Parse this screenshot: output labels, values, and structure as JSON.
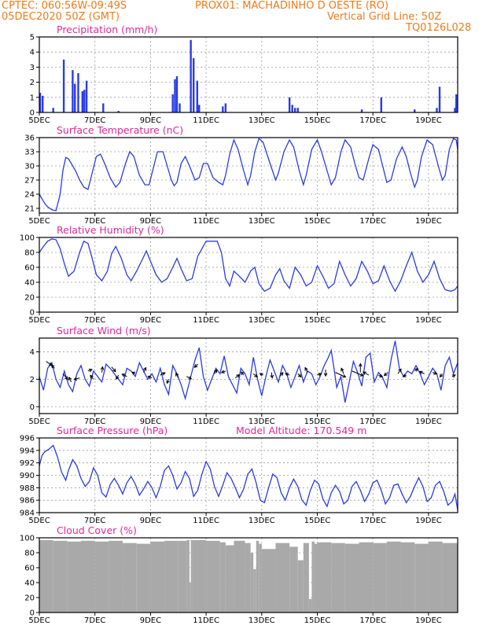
{
  "header": {
    "line1_left": "CPTEC:   060:56W-09:49S",
    "line1_right": "PROX01: MACHADINHO D OESTE (RO)",
    "line2_left": "05DEC2020 50Z (GMT)",
    "line2_right": "Vertical Grid Line: 50Z",
    "line3_right": "TQ0126L028"
  },
  "colors": {
    "header": "#f07a1a",
    "panel_title": "#e0289a",
    "series": "#2a3be8",
    "cloud": "#a9a9a9",
    "vector": "#000000"
  },
  "x_axis": {
    "tick_labels": [
      "5DEC",
      "7DEC",
      "9DEC",
      "11DEC",
      "13DEC",
      "15DEC",
      "17DEC",
      "19DEC"
    ],
    "tick_days": [
      5,
      7,
      9,
      11,
      13,
      15,
      17,
      19
    ],
    "range_days": [
      5,
      20.05
    ]
  },
  "chart_data": [
    {
      "type": "bar",
      "title": "Precipitation (mm/h)",
      "ylim": [
        0,
        5
      ],
      "yticks": [
        0,
        1,
        2,
        3,
        4,
        5
      ],
      "x": [
        5.03,
        5.12,
        5.5,
        5.88,
        6.2,
        6.28,
        6.4,
        6.55,
        6.62,
        6.7,
        7.3,
        7.85,
        9.8,
        9.88,
        9.95,
        10.05,
        10.45,
        10.55,
        10.68,
        10.75,
        11.6,
        11.7,
        14.0,
        14.1,
        14.2,
        14.3,
        16.6,
        17.3,
        18.5,
        19.3,
        19.4,
        19.95,
        20.0
      ],
      "values": [
        1.3,
        1.1,
        0.3,
        3.5,
        2.8,
        1.9,
        2.6,
        1.4,
        1.5,
        2.1,
        0.6,
        0.1,
        1.2,
        2.2,
        2.4,
        0.6,
        4.8,
        3.6,
        2.1,
        0.5,
        0.4,
        0.6,
        1.0,
        0.5,
        0.3,
        0.3,
        0.2,
        1.0,
        0.2,
        0.3,
        1.7,
        0.3,
        1.2
      ],
      "grid": true
    },
    {
      "type": "line",
      "title": "Surface Temperature (nC)",
      "ylim": [
        20,
        36
      ],
      "yticks": [
        21,
        24,
        27,
        30,
        33,
        36
      ],
      "x": [
        5.0,
        5.1,
        5.2,
        5.3,
        5.45,
        5.6,
        5.75,
        5.85,
        5.95,
        6.05,
        6.15,
        6.3,
        6.45,
        6.6,
        6.75,
        6.9,
        7.05,
        7.2,
        7.35,
        7.55,
        7.75,
        7.9,
        8.1,
        8.25,
        8.4,
        8.6,
        8.8,
        8.95,
        9.1,
        9.25,
        9.45,
        9.6,
        9.75,
        9.85,
        9.95,
        10.1,
        10.25,
        10.4,
        10.6,
        10.75,
        10.9,
        11.05,
        11.25,
        11.45,
        11.6,
        11.7,
        11.85,
        12.0,
        12.15,
        12.35,
        12.5,
        12.6,
        12.75,
        12.9,
        13.05,
        13.3,
        13.5,
        13.6,
        13.8,
        14.0,
        14.15,
        14.35,
        14.5,
        14.6,
        14.8,
        15.0,
        15.15,
        15.35,
        15.5,
        15.65,
        15.85,
        16.0,
        16.2,
        16.35,
        16.5,
        16.65,
        16.85,
        17.0,
        17.2,
        17.35,
        17.5,
        17.65,
        17.85,
        18.05,
        18.2,
        18.35,
        18.5,
        18.6,
        18.75,
        18.95,
        19.15,
        19.35,
        19.5,
        19.6,
        19.75,
        19.9,
        20.0,
        20.05
      ],
      "y": [
        24.0,
        23.0,
        22.0,
        21.3,
        20.7,
        20.5,
        24.0,
        29.0,
        31.8,
        31.5,
        30.5,
        29.0,
        27.0,
        25.5,
        25.0,
        28.5,
        32.0,
        32.5,
        30.5,
        27.5,
        25.5,
        26.5,
        30.5,
        33.0,
        32.0,
        28.0,
        26.0,
        26.0,
        29.5,
        33.0,
        33.0,
        30.0,
        27.0,
        25.8,
        26.5,
        30.5,
        32.0,
        30.0,
        27.0,
        27.5,
        30.5,
        30.5,
        27.5,
        26.5,
        26.0,
        28.0,
        32.5,
        35.5,
        33.5,
        29.0,
        26.0,
        28.0,
        33.0,
        35.8,
        35.0,
        30.5,
        27.0,
        28.5,
        33.0,
        35.5,
        34.0,
        29.0,
        26.0,
        28.0,
        33.5,
        35.5,
        33.0,
        29.0,
        26.0,
        27.5,
        33.0,
        35.5,
        34.0,
        30.5,
        27.5,
        27.0,
        31.5,
        34.5,
        33.5,
        30.0,
        26.5,
        27.0,
        31.5,
        34.0,
        32.0,
        28.5,
        25.5,
        27.0,
        32.0,
        35.5,
        34.5,
        30.0,
        27.0,
        28.0,
        33.5,
        35.8,
        35.5,
        33.5
      ],
      "grid": true
    },
    {
      "type": "line",
      "title": "Relative Humidity (%)",
      "ylim": [
        0,
        100
      ],
      "yticks": [
        0,
        20,
        40,
        60,
        80,
        100
      ],
      "x": [
        5.0,
        5.15,
        5.3,
        5.45,
        5.6,
        5.75,
        5.9,
        6.05,
        6.25,
        6.45,
        6.6,
        6.75,
        6.9,
        7.05,
        7.25,
        7.45,
        7.6,
        7.75,
        7.95,
        8.15,
        8.3,
        8.5,
        8.7,
        8.85,
        9.0,
        9.2,
        9.4,
        9.6,
        9.8,
        9.95,
        10.1,
        10.3,
        10.5,
        10.6,
        10.7,
        10.85,
        11.0,
        11.2,
        11.4,
        11.55,
        11.7,
        11.85,
        12.0,
        12.2,
        12.4,
        12.6,
        12.75,
        12.9,
        13.1,
        13.3,
        13.5,
        13.65,
        13.8,
        14.0,
        14.2,
        14.4,
        14.6,
        14.8,
        15.0,
        15.2,
        15.4,
        15.6,
        15.8,
        16.0,
        16.2,
        16.4,
        16.6,
        16.8,
        17.0,
        17.2,
        17.4,
        17.6,
        17.8,
        18.0,
        18.2,
        18.4,
        18.6,
        18.8,
        19.0,
        19.2,
        19.4,
        19.6,
        19.8,
        19.95,
        20.05
      ],
      "y": [
        80,
        88,
        95,
        98,
        97,
        85,
        65,
        48,
        55,
        80,
        95,
        92,
        72,
        50,
        42,
        55,
        78,
        88,
        72,
        50,
        42,
        55,
        70,
        82,
        68,
        50,
        40,
        45,
        60,
        72,
        58,
        42,
        45,
        60,
        75,
        85,
        95,
        95,
        95,
        80,
        45,
        35,
        55,
        48,
        40,
        55,
        60,
        38,
        28,
        32,
        50,
        58,
        42,
        32,
        60,
        50,
        35,
        40,
        62,
        48,
        32,
        38,
        68,
        50,
        35,
        45,
        68,
        55,
        38,
        42,
        62,
        42,
        28,
        42,
        62,
        80,
        55,
        40,
        50,
        68,
        45,
        30,
        28,
        30,
        35
      ],
      "grid": true
    },
    {
      "type": "line",
      "title": "Surface Wind (m/s)",
      "ylim": [
        -0.5,
        5
      ],
      "yticks": [
        0,
        2,
        4
      ],
      "x": [
        5.0,
        5.15,
        5.3,
        5.45,
        5.6,
        5.75,
        5.9,
        6.05,
        6.2,
        6.35,
        6.5,
        6.65,
        6.8,
        6.95,
        7.1,
        7.25,
        7.4,
        7.55,
        7.7,
        7.85,
        8.0,
        8.15,
        8.3,
        8.45,
        8.6,
        8.75,
        8.9,
        9.05,
        9.2,
        9.35,
        9.5,
        9.65,
        9.8,
        9.95,
        10.1,
        10.25,
        10.4,
        10.5,
        10.6,
        10.75,
        10.9,
        11.05,
        11.2,
        11.35,
        11.5,
        11.65,
        11.8,
        11.95,
        12.1,
        12.25,
        12.4,
        12.55,
        12.7,
        12.85,
        13.0,
        13.15,
        13.3,
        13.45,
        13.6,
        13.75,
        13.9,
        14.05,
        14.2,
        14.35,
        14.5,
        14.65,
        14.8,
        14.95,
        15.1,
        15.25,
        15.4,
        15.5,
        15.6,
        15.7,
        15.85,
        16.0,
        16.15,
        16.3,
        16.45,
        16.6,
        16.75,
        16.9,
        17.05,
        17.2,
        17.35,
        17.5,
        17.65,
        17.8,
        17.95,
        18.1,
        18.25,
        18.4,
        18.55,
        18.7,
        18.85,
        19.0,
        19.15,
        19.3,
        19.45,
        19.6,
        19.75,
        19.9,
        20.05
      ],
      "y": [
        2.2,
        1.2,
        2.8,
        3.2,
        2.0,
        1.4,
        2.6,
        1.6,
        1.1,
        2.4,
        3.0,
        2.0,
        1.5,
        2.6,
        2.2,
        1.8,
        3.1,
        2.8,
        2.4,
        2.0,
        1.6,
        2.8,
        2.6,
        2.2,
        3.2,
        2.6,
        2.0,
        2.4,
        1.8,
        2.8,
        1.6,
        0.9,
        3.0,
        2.4,
        1.6,
        0.6,
        1.8,
        2.6,
        3.4,
        4.3,
        2.2,
        1.2,
        2.0,
        2.8,
        2.4,
        3.7,
        2.2,
        1.6,
        1.0,
        2.8,
        2.4,
        1.6,
        3.6,
        2.0,
        0.8,
        2.2,
        3.4,
        2.6,
        1.8,
        3.0,
        2.4,
        1.4,
        2.2,
        3.0,
        1.8,
        2.6,
        2.4,
        1.6,
        2.2,
        3.0,
        3.6,
        4.1,
        2.8,
        1.4,
        2.2,
        0.3,
        1.8,
        3.3,
        2.5,
        1.5,
        3.6,
        3.9,
        1.8,
        2.5,
        2.1,
        1.4,
        3.4,
        4.8,
        2.8,
        2.2,
        2.6,
        2.4,
        3.0,
        2.4,
        1.6,
        2.2,
        2.8,
        2.4,
        1.2,
        3.0,
        3.6,
        2.4,
        3.2
      ],
      "vectors": [
        [
          5.25,
          3.3,
          7,
          5
        ],
        [
          5.55,
          2.8,
          -4,
          -4
        ],
        [
          5.85,
          2.4,
          6,
          7
        ],
        [
          6.15,
          1.8,
          -3,
          -6
        ],
        [
          6.45,
          2.1,
          -7,
          2
        ],
        [
          6.75,
          2.6,
          5,
          -2
        ],
        [
          6.95,
          2.0,
          -4,
          -5
        ],
        [
          7.25,
          2.5,
          1,
          -7
        ],
        [
          7.6,
          2.9,
          5,
          6
        ],
        [
          7.85,
          2.3,
          -3,
          5
        ],
        [
          8.15,
          2.2,
          -6,
          -3
        ],
        [
          8.45,
          2.4,
          -4,
          -2
        ],
        [
          8.75,
          2.5,
          3,
          -6
        ],
        [
          9.05,
          2.1,
          -5,
          -2
        ],
        [
          9.35,
          2.3,
          6,
          -3
        ],
        [
          9.65,
          2.0,
          -2,
          5
        ],
        [
          10.0,
          2.1,
          -3,
          -6
        ],
        [
          10.3,
          2.2,
          6,
          3
        ],
        [
          10.7,
          3.1,
          -4,
          4
        ],
        [
          11.3,
          2.4,
          3,
          -5
        ],
        [
          11.7,
          2.6,
          -5,
          2
        ],
        [
          12.05,
          2.1,
          5,
          -4
        ],
        [
          12.35,
          2.3,
          -3,
          -4
        ],
        [
          12.7,
          2.4,
          5,
          4
        ],
        [
          13.05,
          2.3,
          -4,
          -2
        ],
        [
          13.35,
          2.5,
          1,
          7
        ],
        [
          13.65,
          2.2,
          4,
          -5
        ],
        [
          14.0,
          2.3,
          -5,
          -2
        ],
        [
          14.3,
          2.4,
          4,
          4
        ],
        [
          14.65,
          2.5,
          -3,
          -6
        ],
        [
          15.0,
          2.3,
          5,
          -2
        ],
        [
          15.3,
          2.7,
          0,
          8
        ],
        [
          15.65,
          2.5,
          13,
          6
        ],
        [
          15.95,
          2.4,
          -3,
          -7
        ],
        [
          16.25,
          2.6,
          14,
          6
        ],
        [
          16.55,
          2.5,
          0,
          -11
        ],
        [
          16.85,
          2.3,
          -7,
          -4
        ],
        [
          17.2,
          2.3,
          5,
          2
        ],
        [
          17.55,
          2.5,
          -5,
          4
        ],
        [
          17.9,
          2.4,
          4,
          -6
        ],
        [
          18.2,
          2.3,
          -4,
          2
        ],
        [
          18.5,
          2.6,
          4,
          -3
        ],
        [
          18.85,
          2.4,
          -6,
          -3
        ],
        [
          19.15,
          2.5,
          5,
          2
        ],
        [
          19.5,
          2.4,
          -3,
          4
        ],
        [
          19.85,
          2.2,
          4,
          -2
        ]
      ],
      "grid": true
    },
    {
      "type": "line",
      "title": "Surface Pressure (hPa)",
      "annotation": "Model Altitude: 170.549 m",
      "ylim": [
        984,
        996
      ],
      "yticks": [
        984,
        986,
        988,
        990,
        992,
        994,
        996
      ],
      "x": [
        5.0,
        5.1,
        5.2,
        5.35,
        5.5,
        5.65,
        5.8,
        5.95,
        6.05,
        6.2,
        6.35,
        6.5,
        6.65,
        6.8,
        6.95,
        7.1,
        7.25,
        7.4,
        7.55,
        7.7,
        7.85,
        8.0,
        8.15,
        8.3,
        8.45,
        8.6,
        8.75,
        8.9,
        9.05,
        9.2,
        9.35,
        9.5,
        9.65,
        9.8,
        9.95,
        10.1,
        10.25,
        10.4,
        10.55,
        10.7,
        10.85,
        11.0,
        11.15,
        11.3,
        11.45,
        11.6,
        11.75,
        11.9,
        12.05,
        12.2,
        12.35,
        12.5,
        12.65,
        12.8,
        12.95,
        13.1,
        13.25,
        13.4,
        13.55,
        13.7,
        13.85,
        14.0,
        14.15,
        14.3,
        14.45,
        14.6,
        14.75,
        14.9,
        15.05,
        15.2,
        15.35,
        15.5,
        15.65,
        15.8,
        15.95,
        16.1,
        16.25,
        16.4,
        16.55,
        16.7,
        16.85,
        17.0,
        17.15,
        17.3,
        17.45,
        17.6,
        17.75,
        17.9,
        18.05,
        18.2,
        18.35,
        18.5,
        18.65,
        18.8,
        18.95,
        19.1,
        19.25,
        19.4,
        19.55,
        19.7,
        19.85,
        19.95,
        20.05
      ],
      "y": [
        991.5,
        993.2,
        993.8,
        994.2,
        994.8,
        993.0,
        990.5,
        989.2,
        990.8,
        992.5,
        991.5,
        989.5,
        988.2,
        989.0,
        991.2,
        990.0,
        987.2,
        986.5,
        988.5,
        989.5,
        988.4,
        987.0,
        988.8,
        989.8,
        988.6,
        986.8,
        987.8,
        989.0,
        988.0,
        986.4,
        988.2,
        990.8,
        991.5,
        990.0,
        987.8,
        988.8,
        990.6,
        989.5,
        986.6,
        987.6,
        990.2,
        992.2,
        991.0,
        988.2,
        986.6,
        988.4,
        990.4,
        989.5,
        988.0,
        986.4,
        987.8,
        990.2,
        991.0,
        988.8,
        986.0,
        985.6,
        988.0,
        990.2,
        989.6,
        987.2,
        986.0,
        988.0,
        989.4,
        988.2,
        986.0,
        985.2,
        987.6,
        989.2,
        988.6,
        986.2,
        985.0,
        987.2,
        988.4,
        987.4,
        985.4,
        986.0,
        988.2,
        989.0,
        987.6,
        985.8,
        987.0,
        988.8,
        989.2,
        987.6,
        985.4,
        986.4,
        988.4,
        988.6,
        987.0,
        985.6,
        986.6,
        988.2,
        989.6,
        988.2,
        985.8,
        986.4,
        988.4,
        989.0,
        987.4,
        985.2,
        985.8,
        987.0,
        984.4
      ],
      "grid": true
    },
    {
      "type": "area",
      "title": "Cloud Cover (%)",
      "ylim": [
        0,
        100
      ],
      "yticks": [
        0,
        20,
        40,
        60,
        80,
        100
      ],
      "x": [
        5.0,
        5.5,
        6.0,
        6.5,
        7.0,
        7.5,
        8.0,
        8.5,
        9.0,
        9.5,
        10.0,
        10.3,
        10.4,
        10.45,
        10.5,
        11.0,
        11.5,
        11.7,
        12.0,
        12.4,
        12.6,
        12.7,
        12.8,
        12.9,
        13.0,
        13.5,
        14.0,
        14.3,
        14.5,
        14.7,
        14.8,
        14.9,
        15.0,
        15.5,
        16.0,
        16.5,
        17.0,
        17.5,
        18.0,
        18.5,
        19.0,
        19.5,
        20.05
      ],
      "values": [
        97,
        96,
        95,
        96,
        95,
        96,
        93,
        92,
        95,
        96,
        96,
        97,
        40,
        97,
        97,
        96,
        94,
        90,
        96,
        93,
        80,
        58,
        96,
        92,
        85,
        93,
        88,
        70,
        93,
        18,
        95,
        92,
        94,
        93,
        92,
        94,
        93,
        95,
        94,
        92,
        95,
        93,
        94
      ],
      "grid": true
    }
  ]
}
